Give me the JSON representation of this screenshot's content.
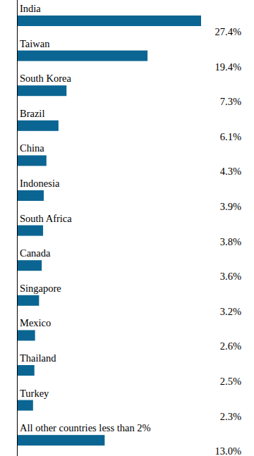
{
  "chart_data": {
    "type": "bar",
    "orientation": "horizontal",
    "categories": [
      "India",
      "Taiwan",
      "South Korea",
      "Brazil",
      "China",
      "Indonesia",
      "South Africa",
      "Canada",
      "Singapore",
      "Mexico",
      "Thailand",
      "Turkey",
      "All other countries less than 2%"
    ],
    "values": [
      27.4,
      19.4,
      7.3,
      6.1,
      4.3,
      3.9,
      3.8,
      3.6,
      3.2,
      2.6,
      2.5,
      2.3,
      13.0
    ],
    "value_labels": [
      "27.4%",
      "19.4%",
      "7.3%",
      "6.1%",
      "4.3%",
      "3.9%",
      "3.8%",
      "3.6%",
      "3.2%",
      "2.6%",
      "2.5%",
      "2.3%",
      "13.0%"
    ],
    "color": "#0b6592",
    "data_labels": true,
    "tick_labels": "y"
  }
}
